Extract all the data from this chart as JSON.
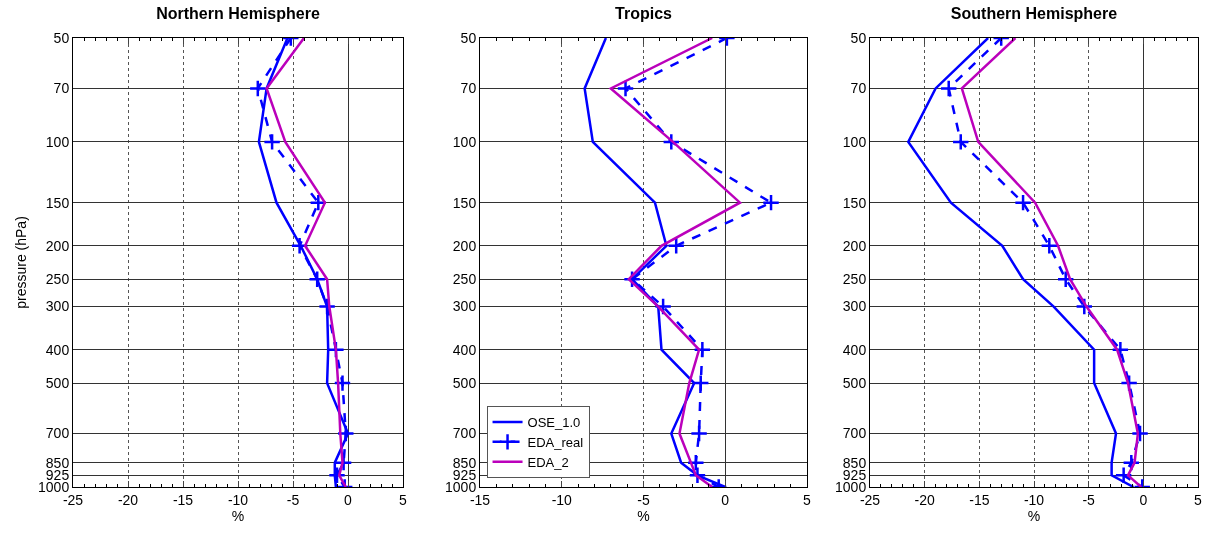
{
  "chart_data": [
    {
      "type": "line",
      "title": "Northern Hemisphere",
      "xlabel": "%",
      "ylabel": "pressure (hPa)",
      "orientation": "horizontal",
      "log": "y",
      "grid": true,
      "legend": false,
      "x": [
        50,
        70,
        100,
        150,
        200,
        250,
        300,
        400,
        500,
        700,
        850,
        925,
        1000
      ],
      "xlim": [
        -25,
        5
      ],
      "xticks": [
        -25,
        -20,
        -15,
        -10,
        -5,
        0,
        5
      ],
      "ylim": [
        1000,
        50
      ],
      "yticks": [
        50,
        70,
        100,
        150,
        200,
        250,
        300,
        400,
        500,
        700,
        850,
        925,
        1000
      ],
      "series": [
        {
          "color": "#0000ff",
          "line_style": "solid",
          "marker": "none",
          "values": [
            -5.5,
            -7.4,
            -8.1,
            -6.5,
            -4.3,
            -2.8,
            -1.9,
            -1.8,
            -1.9,
            0,
            -1.2,
            -1.2,
            -1.1
          ]
        },
        {
          "color": "#0000ff",
          "line_style": "dashed",
          "marker": "cross",
          "values": [
            -5.2,
            -8.2,
            -6.9,
            -2.7,
            -4.4,
            -2.8,
            -1.9,
            -1.1,
            -0.5,
            -0.2,
            -0.4,
            -1.0,
            -0.3
          ]
        },
        {
          "color": "#bb00bb",
          "line_style": "solid",
          "marker": "none",
          "values": [
            -4.0,
            -7.4,
            -5.7,
            -2.1,
            -3.9,
            -1.9,
            -1.7,
            -1.1,
            -0.9,
            -0.7,
            -0.5,
            -0.8,
            -0.2
          ]
        }
      ]
    },
    {
      "type": "line",
      "title": "Tropics",
      "xlabel": "%",
      "orientation": "horizontal",
      "log": "y",
      "grid": true,
      "legend": "bottom left",
      "x": [
        50,
        70,
        100,
        150,
        200,
        250,
        300,
        400,
        500,
        700,
        850,
        925,
        1000
      ],
      "xlim": [
        -15,
        5
      ],
      "xticks": [
        -15,
        -10,
        -5,
        0,
        5
      ],
      "ylim": [
        1000,
        50
      ],
      "yticks": [
        50,
        70,
        100,
        150,
        200,
        250,
        300,
        400,
        500,
        700,
        850,
        925,
        1000
      ],
      "series": [
        {
          "name": "OSE_1.0",
          "color": "#0000ff",
          "line_style": "solid",
          "marker": "none",
          "values": [
            -7.3,
            -8.6,
            -8.1,
            -4.3,
            -3.6,
            -5.7,
            -4.1,
            -3.9,
            -1.9,
            -3.3,
            -2.7,
            -1.7,
            0
          ]
        },
        {
          "name": "EDA_real",
          "color": "#0000ff",
          "line_style": "dashed",
          "marker": "cross",
          "values": [
            0.1,
            -6.1,
            -3.3,
            2.8,
            -3.0,
            -5.7,
            -3.8,
            -1.4,
            -1.5,
            -1.6,
            -1.8,
            -1.7,
            -0.4
          ]
        },
        {
          "name": "EDA_2",
          "color": "#bb00bb",
          "line_style": "solid",
          "marker": "none",
          "values": [
            -0.8,
            -7.0,
            -3.2,
            0.9,
            -3.9,
            -5.9,
            -4.1,
            -1.6,
            -2.2,
            -2.8,
            -2.1,
            -1.8,
            -0.8
          ]
        }
      ]
    },
    {
      "type": "line",
      "title": "Southern Hemisphere",
      "xlabel": "%",
      "orientation": "horizontal",
      "log": "y",
      "grid": true,
      "legend": false,
      "x": [
        50,
        70,
        100,
        150,
        200,
        250,
        300,
        400,
        500,
        700,
        850,
        925,
        1000
      ],
      "xlim": [
        -25,
        5
      ],
      "xticks": [
        -25,
        -20,
        -15,
        -10,
        -5,
        0,
        5
      ],
      "ylim": [
        1000,
        50
      ],
      "yticks": [
        50,
        70,
        100,
        150,
        200,
        250,
        300,
        400,
        500,
        700,
        850,
        925,
        1000
      ],
      "series": [
        {
          "color": "#0000ff",
          "line_style": "solid",
          "marker": "none",
          "values": [
            -14.2,
            -19.0,
            -21.5,
            -17.6,
            -12.9,
            -11.0,
            -8.2,
            -4.5,
            -4.5,
            -2.5,
            -2.9,
            -2.9,
            -0.9
          ]
        },
        {
          "color": "#0000ff",
          "line_style": "dashed",
          "marker": "cross",
          "values": [
            -13.0,
            -17.8,
            -16.7,
            -11.0,
            -8.6,
            -7.1,
            -5.4,
            -2.1,
            -1.3,
            -0.3,
            -1.1,
            -1.8,
            -0.1
          ]
        },
        {
          "color": "#bb00bb",
          "line_style": "solid",
          "marker": "none",
          "values": [
            -11.7,
            -16.6,
            -15.1,
            -9.9,
            -7.8,
            -6.7,
            -5.2,
            -2.4,
            -1.4,
            -0.5,
            -0.8,
            -1.4,
            -0.2
          ]
        }
      ]
    }
  ]
}
